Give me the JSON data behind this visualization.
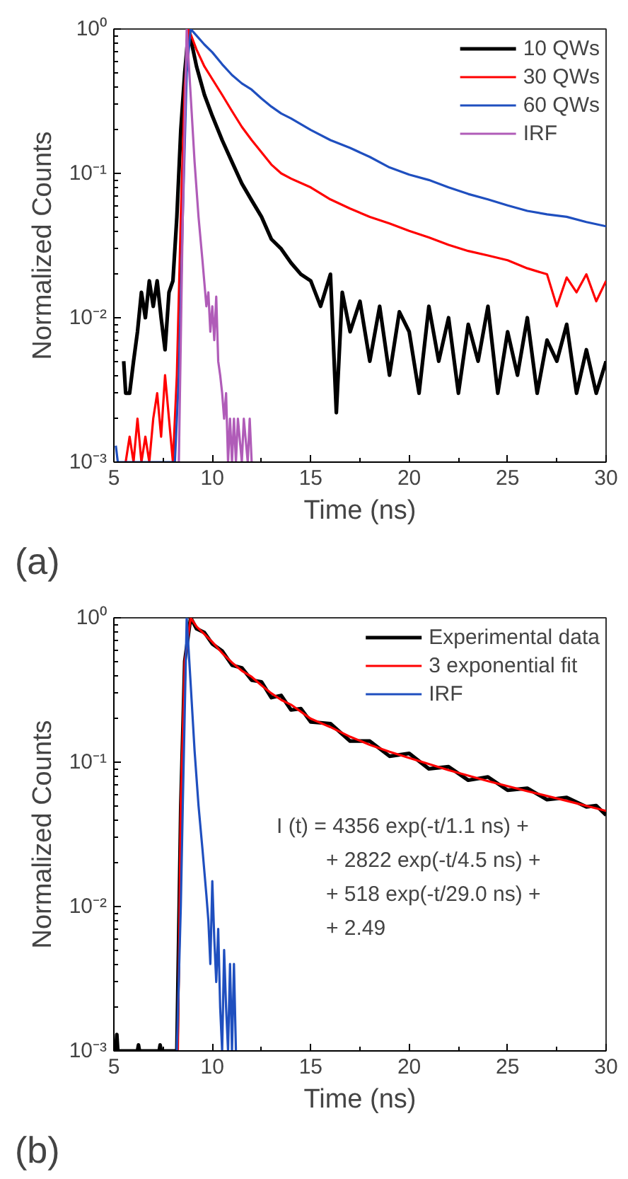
{
  "chart_data": [
    {
      "type": "line",
      "xlabel": "Time (ns)",
      "ylabel": "Normalized Counts",
      "log": "y",
      "xlim": [
        5,
        30
      ],
      "ylim": [
        0.001,
        1
      ],
      "xticks": [
        5,
        10,
        15,
        20,
        25,
        30
      ],
      "yticks": [
        {
          "value": 0.001,
          "label": "10⁻³"
        },
        {
          "value": 0.01,
          "label": "10⁻²"
        },
        {
          "value": 0.1,
          "label": "10⁻¹"
        },
        {
          "value": 1,
          "label": "10⁰"
        }
      ],
      "grid": false,
      "legend": "top right",
      "annotations": [
        "(a)"
      ],
      "series": [
        {
          "name": "10 QWs",
          "color": "#000000",
          "x": [
            5.5,
            5.6,
            5.8,
            6.0,
            6.2,
            6.4,
            6.6,
            6.8,
            7.0,
            7.2,
            7.4,
            7.6,
            7.8,
            8.0,
            8.2,
            8.4,
            8.6,
            8.8,
            9.2,
            9.6,
            10.0,
            10.5,
            11.0,
            11.5,
            12.0,
            12.5,
            13.0,
            13.5,
            14.0,
            14.5,
            15.0,
            15.5,
            16.0,
            16.3,
            16.6,
            17.0,
            17.5,
            18.0,
            18.5,
            19.0,
            19.5,
            20.0,
            20.5,
            21.0,
            21.5,
            22.0,
            22.5,
            23.0,
            23.5,
            24.0,
            24.5,
            25.0,
            25.5,
            26.0,
            26.5,
            27.0,
            27.5,
            28.0,
            28.5,
            29.0,
            29.5,
            30.0
          ],
          "values": [
            0.005,
            0.003,
            0.003,
            0.005,
            0.008,
            0.015,
            0.01,
            0.018,
            0.012,
            0.018,
            0.01,
            0.006,
            0.015,
            0.018,
            0.05,
            0.2,
            0.5,
            1,
            0.55,
            0.35,
            0.25,
            0.17,
            0.12,
            0.085,
            0.065,
            0.05,
            0.035,
            0.03,
            0.024,
            0.02,
            0.018,
            0.012,
            0.02,
            0.0022,
            0.015,
            0.008,
            0.013,
            0.005,
            0.012,
            0.004,
            0.011,
            0.008,
            0.003,
            0.012,
            0.005,
            0.01,
            0.003,
            0.009,
            0.005,
            0.012,
            0.003,
            0.008,
            0.004,
            0.01,
            0.003,
            0.007,
            0.005,
            0.009,
            0.003,
            0.006,
            0.003,
            0.005
          ]
        },
        {
          "name": "30 QWs",
          "color": "#ff0000",
          "x": [
            5.6,
            5.8,
            6.0,
            6.2,
            6.4,
            6.6,
            6.8,
            7.0,
            7.2,
            7.4,
            7.6,
            7.8,
            8.0,
            8.2,
            8.4,
            8.6,
            8.8,
            9.2,
            9.6,
            10.0,
            10.5,
            11.0,
            11.5,
            12.0,
            12.5,
            13.0,
            13.5,
            14.0,
            15.0,
            16.0,
            17.0,
            18.0,
            19.0,
            20.0,
            21.0,
            22.0,
            23.0,
            24.0,
            25.0,
            26.0,
            27.0,
            27.5,
            28.0,
            28.5,
            29.0,
            29.5,
            30.0
          ],
          "values": [
            0.001,
            0.0015,
            0.001,
            0.002,
            0.001,
            0.0015,
            0.001,
            0.002,
            0.003,
            0.0015,
            0.004,
            0.002,
            0.001,
            0.004,
            0.05,
            0.4,
            1,
            0.72,
            0.55,
            0.45,
            0.35,
            0.27,
            0.21,
            0.17,
            0.14,
            0.115,
            0.1,
            0.092,
            0.08,
            0.066,
            0.057,
            0.05,
            0.045,
            0.04,
            0.036,
            0.032,
            0.029,
            0.027,
            0.025,
            0.022,
            0.02,
            0.012,
            0.019,
            0.015,
            0.02,
            0.013,
            0.018
          ]
        },
        {
          "name": "60 QWs",
          "color": "#1f4fbf",
          "x": [
            5.1,
            5.2,
            8.1,
            8.3,
            8.5,
            8.7,
            8.9,
            9.2,
            9.6,
            10.0,
            10.5,
            11.0,
            11.5,
            12.0,
            12.5,
            13.0,
            13.5,
            14.0,
            15.0,
            16.0,
            17.0,
            18.0,
            19.0,
            20.0,
            21.0,
            22.0,
            23.0,
            24.0,
            25.0,
            26.0,
            27.0,
            28.0,
            29.0,
            30.0
          ],
          "values": [
            0.0013,
            0.001,
            0.001,
            0.004,
            0.05,
            0.5,
            1,
            0.9,
            0.78,
            0.69,
            0.57,
            0.48,
            0.42,
            0.38,
            0.33,
            0.29,
            0.26,
            0.24,
            0.2,
            0.17,
            0.15,
            0.13,
            0.11,
            0.098,
            0.09,
            0.08,
            0.072,
            0.066,
            0.06,
            0.055,
            0.052,
            0.05,
            0.046,
            0.043
          ]
        },
        {
          "name": "IRF",
          "color": "#b05cb8",
          "x": [
            8.3,
            8.5,
            8.7,
            8.9,
            9.1,
            9.3,
            9.5,
            9.7,
            9.8,
            9.9,
            10.0,
            10.1,
            10.2,
            10.3,
            10.4,
            10.5,
            10.6,
            10.7,
            10.8,
            10.9,
            11.0,
            11.1,
            11.2,
            11.3,
            11.5,
            11.6,
            11.8,
            11.9,
            12.0
          ],
          "values": [
            0.001,
            0.05,
            1,
            0.35,
            0.12,
            0.05,
            0.025,
            0.012,
            0.015,
            0.008,
            0.012,
            0.007,
            0.014,
            0.005,
            0.004,
            0.003,
            0.002,
            0.003,
            0.001,
            0.002,
            0.001,
            0.002,
            0.001,
            0.002,
            0.001,
            0.002,
            0.001,
            0.002,
            0.001
          ]
        }
      ]
    },
    {
      "type": "line",
      "xlabel": "Time (ns)",
      "ylabel": "Normalized Counts",
      "log": "y",
      "xlim": [
        5,
        30
      ],
      "ylim": [
        0.001,
        1
      ],
      "xticks": [
        5,
        10,
        15,
        20,
        25,
        30
      ],
      "yticks": [
        {
          "value": 0.001,
          "label": "10⁻³"
        },
        {
          "value": 0.01,
          "label": "10⁻²"
        },
        {
          "value": 0.1,
          "label": "10⁻¹"
        },
        {
          "value": 1,
          "label": "10⁰"
        }
      ],
      "grid": false,
      "legend": "top right",
      "annotations": [
        "(b)",
        "I (t) = 4356 exp(-t/1.1 ns) +",
        "+ 2822 exp(-t/4.5 ns) +",
        "+ 518 exp(-t/29.0 ns) +",
        "+ 2.49"
      ],
      "series": [
        {
          "name": "Experimental data",
          "color": "#000000",
          "x": [
            5.1,
            5.15,
            5.2,
            6.2,
            6.25,
            6.3,
            7.3,
            7.35,
            7.4,
            8.2,
            8.4,
            8.6,
            8.9,
            9.2,
            9.6,
            10.0,
            10.5,
            11.0,
            11.5,
            12.0,
            12.5,
            13.0,
            13.5,
            14.0,
            14.5,
            15.0,
            16.0,
            17.0,
            18.0,
            19.0,
            20.0,
            21.0,
            22.0,
            23.0,
            24.0,
            25.0,
            26.0,
            27.0,
            28.0,
            29.0,
            29.5,
            30.0
          ],
          "values": [
            0.001,
            0.0013,
            0.001,
            0.001,
            0.0011,
            0.001,
            0.001,
            0.0011,
            0.001,
            0.001,
            0.05,
            0.5,
            1,
            0.84,
            0.79,
            0.66,
            0.59,
            0.47,
            0.45,
            0.37,
            0.36,
            0.28,
            0.29,
            0.23,
            0.235,
            0.19,
            0.185,
            0.14,
            0.14,
            0.11,
            0.115,
            0.09,
            0.093,
            0.075,
            0.079,
            0.064,
            0.066,
            0.055,
            0.057,
            0.049,
            0.05,
            0.043
          ]
        },
        {
          "name": "3 exponential fit",
          "color": "#ff0000",
          "x": [
            8.25,
            8.4,
            8.6,
            8.9,
            9.2,
            9.6,
            10.0,
            10.5,
            11.0,
            11.5,
            12.0,
            12.5,
            13.0,
            13.5,
            14.0,
            15.0,
            16.0,
            17.0,
            18.0,
            19.0,
            20.0,
            22.0,
            24.0,
            26.0,
            28.0,
            30.0
          ],
          "values": [
            0.001,
            0.05,
            0.5,
            1,
            0.87,
            0.77,
            0.68,
            0.57,
            0.49,
            0.43,
            0.39,
            0.34,
            0.3,
            0.27,
            0.25,
            0.2,
            0.175,
            0.15,
            0.132,
            0.118,
            0.107,
            0.088,
            0.074,
            0.063,
            0.054,
            0.046
          ]
        },
        {
          "name": "IRF",
          "color": "#1f4fbf",
          "x": [
            8.2,
            8.4,
            8.5,
            8.7,
            8.9,
            9.1,
            9.3,
            9.5,
            9.7,
            9.8,
            9.9,
            10.0,
            10.1,
            10.2,
            10.3,
            10.4,
            10.5,
            10.6,
            10.7,
            10.8,
            10.9,
            11.0,
            11.1,
            11.2
          ],
          "values": [
            0.001,
            0.01,
            0.05,
            1,
            0.35,
            0.12,
            0.05,
            0.025,
            0.012,
            0.008,
            0.004,
            0.015,
            0.006,
            0.003,
            0.007,
            0.002,
            0.001,
            0.005,
            0.002,
            0.001,
            0.004,
            0.001,
            0.004,
            0.001
          ]
        }
      ]
    }
  ]
}
